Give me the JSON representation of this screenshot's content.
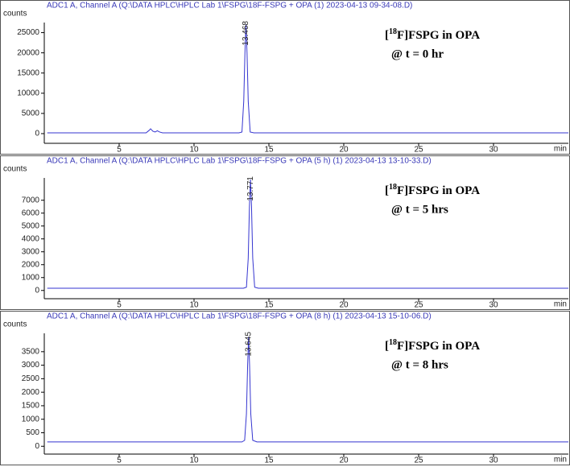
{
  "chart_data": [
    {
      "type": "line",
      "title": "ADC1 A, Channel A (Q:\\DATA HPLC\\HPLC Lab 1\\FSPG\\18F-FSPG + OPA (1) 2023-04-13 09-34-08.D)",
      "ylabel": "counts",
      "xlabel": "min",
      "xlim": [
        0,
        35
      ],
      "xticks": [
        5,
        10,
        15,
        20,
        25,
        30
      ],
      "ylim": [
        -2400,
        27500
      ],
      "yticks": [
        0,
        5000,
        10000,
        15000,
        20000,
        25000
      ],
      "peak_labels": [
        13.468
      ],
      "note": {
        "prefix": "[",
        "sup": "18",
        "main": "F]FSPG in OPA",
        "line2": "@ t = 0 hr"
      },
      "series": [
        {
          "color": "#3535d0",
          "x": [
            0.2,
            6.8,
            7.0,
            7.1,
            7.25,
            7.4,
            7.55,
            7.7,
            7.9,
            13.0,
            13.2,
            13.32,
            13.4,
            13.468,
            13.54,
            13.62,
            13.75,
            14.0,
            35
          ],
          "values": [
            200,
            200,
            800,
            1200,
            600,
            400,
            700,
            400,
            200,
            200,
            400,
            8000,
            20000,
            27000,
            20000,
            8000,
            400,
            200,
            200
          ]
        }
      ]
    },
    {
      "type": "line",
      "title": "ADC1 A, Channel A (Q:\\DATA HPLC\\HPLC Lab 1\\FSPG\\18F-FSPG + OPA (5 h) (1) 2023-04-13 13-10-33.D)",
      "ylabel": "counts",
      "xlabel": "min",
      "xlim": [
        0,
        35
      ],
      "xticks": [
        5,
        10,
        15,
        20,
        25,
        30
      ],
      "ylim": [
        -640,
        8730
      ],
      "yticks": [
        0,
        1000,
        2000,
        3000,
        4000,
        5000,
        6000,
        7000
      ],
      "peak_labels": [
        13.771
      ],
      "note": {
        "prefix": "[",
        "sup": "18",
        "main": "F]FSPG in OPA",
        "line2": "@ t = 5 hrs"
      },
      "series": [
        {
          "color": "#3535d0",
          "x": [
            0.2,
            13.3,
            13.5,
            13.62,
            13.7,
            13.771,
            13.84,
            13.92,
            14.05,
            14.3,
            35
          ],
          "values": [
            170,
            170,
            250,
            2500,
            6500,
            8600,
            6500,
            2500,
            250,
            170,
            170
          ]
        }
      ]
    },
    {
      "type": "line",
      "title": "ADC1 A, Channel A (Q:\\DATA HPLC\\HPLC Lab 1\\FSPG\\18F-FSPG + OPA (8 h) (1) 2023-04-13 15-10-06.D)",
      "ylabel": "counts",
      "xlabel": "min",
      "xlim": [
        0,
        35
      ],
      "xticks": [
        5,
        10,
        15,
        20,
        25,
        30
      ],
      "ylim": [
        -290,
        4180
      ],
      "yticks": [
        0,
        500,
        1000,
        1500,
        2000,
        2500,
        3000,
        3500
      ],
      "peak_labels": [
        13.645
      ],
      "note": {
        "prefix": "[",
        "sup": "18",
        "main": "F]FSPG in OPA",
        "line2": "@ t = 8 hrs"
      },
      "series": [
        {
          "color": "#3535d0",
          "x": [
            0.2,
            13.2,
            13.38,
            13.5,
            13.58,
            13.645,
            13.71,
            13.79,
            13.92,
            14.2,
            35
          ],
          "values": [
            160,
            160,
            220,
            1200,
            3000,
            4050,
            3000,
            1200,
            220,
            160,
            160
          ]
        }
      ]
    }
  ]
}
